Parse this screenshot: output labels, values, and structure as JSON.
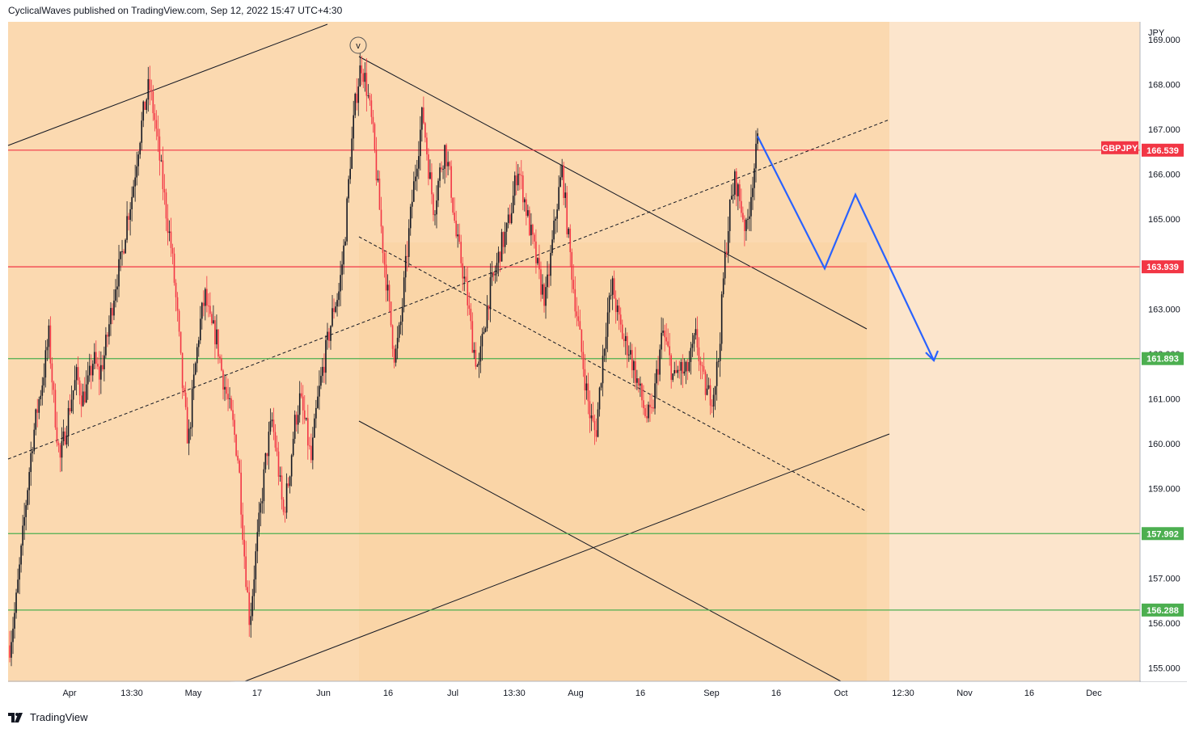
{
  "header": {
    "text": "CyclicalWaves published on TradingView.com, Sep 12, 2022 15:47 UTC+4:30"
  },
  "footer": {
    "logo_text": "TradingView",
    "logo_icon": "tradingview-logo-icon"
  },
  "colors": {
    "up_candle": "#131722",
    "down_candle": "#f23645",
    "red_level": "#f23645",
    "green_level": "#4caf50",
    "projection": "#2962ff",
    "zone_outer": "#fce5cc",
    "zone_inner": "#fbd9b0",
    "zone_core": "#fad1a0"
  },
  "chart_data": {
    "type": "candlestick",
    "symbol": "GBPJPY",
    "currency": "JPY",
    "current_price": 166.539,
    "ylim": [
      154.7,
      169.4
    ],
    "yticks": [
      155.0,
      156.0,
      157.0,
      158.0,
      159.0,
      160.0,
      161.0,
      162.0,
      163.0,
      164.0,
      165.0,
      166.0,
      167.0,
      168.0,
      169.0
    ],
    "xticks": [
      "Apr",
      "13:30",
      "May",
      "17",
      "Jun",
      "16",
      "Jul",
      "13:30",
      "Aug",
      "16",
      "Sep",
      "16",
      "Oct",
      "12:30",
      "Nov",
      "16",
      "Dec"
    ],
    "horizontal_levels": [
      {
        "price": 166.539,
        "label": "166.539",
        "color": "red"
      },
      {
        "price": 163.939,
        "label": "163.939",
        "color": "red"
      },
      {
        "price": 161.893,
        "label": "161.893",
        "color": "green"
      },
      {
        "price": 157.992,
        "label": "157.992",
        "color": "green"
      },
      {
        "price": 156.288,
        "label": "156.288",
        "color": "green"
      }
    ],
    "wave_label": "v",
    "projection_path": [
      166.85,
      163.9,
      165.55,
      161.85
    ],
    "price_path": [
      155.5,
      156.3,
      157.5,
      158.8,
      160.0,
      160.8,
      161.5,
      162.4,
      160.8,
      159.6,
      160.3,
      161.0,
      161.5,
      161.0,
      161.3,
      161.9,
      161.5,
      162.0,
      162.8,
      163.6,
      164.1,
      165.0,
      165.6,
      166.6,
      167.4,
      168.0,
      167.2,
      166.2,
      165.2,
      164.3,
      162.9,
      161.2,
      160.0,
      161.4,
      162.6,
      163.3,
      162.6,
      162.4,
      161.6,
      161.0,
      160.4,
      159.6,
      157.6,
      156.0,
      157.4,
      158.6,
      159.8,
      160.5,
      159.6,
      158.4,
      159.2,
      160.4,
      161.0,
      160.4,
      159.6,
      160.8,
      161.6,
      162.3,
      163.0,
      163.4,
      164.5,
      166.3,
      167.7,
      168.5,
      167.9,
      167.0,
      165.6,
      164.2,
      163.0,
      161.9,
      162.6,
      164.0,
      165.3,
      166.4,
      167.4,
      166.2,
      165.2,
      166.0,
      166.6,
      165.8,
      164.6,
      164.0,
      163.2,
      162.2,
      161.6,
      162.6,
      163.4,
      163.8,
      164.4,
      164.7,
      165.3,
      166.2,
      165.6,
      164.9,
      164.3,
      163.6,
      163.2,
      164.2,
      165.3,
      166.1,
      164.7,
      163.5,
      162.5,
      161.5,
      160.6,
      160.2,
      161.6,
      162.8,
      163.5,
      162.8,
      162.3,
      162.1,
      161.6,
      161.1,
      160.6,
      160.6,
      161.6,
      162.5,
      162.0,
      161.4,
      161.7,
      161.5,
      161.9,
      162.4,
      161.5,
      161.1,
      161.1,
      161.9,
      163.9,
      165.2,
      165.9,
      165.3,
      164.7,
      165.8,
      166.7
    ]
  }
}
